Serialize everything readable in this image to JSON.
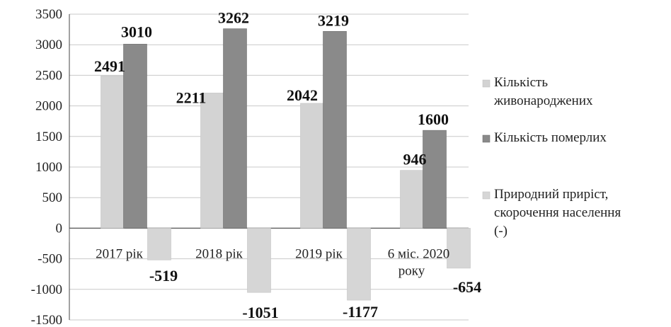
{
  "chart_data": {
    "type": "bar",
    "categories": [
      "2017 рік",
      "2018 рік",
      "2019 рік",
      "6 міс. 2020 року"
    ],
    "category_lines": [
      [
        "2017 рік"
      ],
      [
        "2018 рік"
      ],
      [
        "2019 рік"
      ],
      [
        "6 міс. 2020",
        "року"
      ]
    ],
    "series": [
      {
        "name": "Кількість живонароджених",
        "legend_lines": [
          "Кількість",
          "живонароджених"
        ],
        "values": [
          2491,
          2211,
          2042,
          946
        ],
        "data_labels": [
          "2491",
          "2211",
          "2042",
          "946"
        ],
        "color": "#d3d3d3"
      },
      {
        "name": "Кількість померлих",
        "legend_lines": [
          "Кількість померлих"
        ],
        "values": [
          3010,
          3262,
          3219,
          1600
        ],
        "data_labels": [
          "3010",
          "3262",
          "3219",
          "1600"
        ],
        "color": "#8a8a8a"
      },
      {
        "name": "Природний приріст, скорочення населення (-)",
        "legend_lines": [
          "Природний приріст,",
          "скорочення населення",
          "(-)"
        ],
        "values": [
          -519,
          -1051,
          -1177,
          -654
        ],
        "data_labels": [
          "-519",
          "-1051",
          "-1177",
          "-654"
        ],
        "color": "#d6d6d6"
      }
    ],
    "ylim": [
      -1500,
      3500
    ],
    "yticks": [
      "3500",
      "3000",
      "2500",
      "2000",
      "1500",
      "1000",
      "500",
      "0",
      "-500",
      "-1000",
      "-1500"
    ],
    "ytick_values": [
      3500,
      3000,
      2500,
      2000,
      1500,
      1000,
      500,
      0,
      -500,
      -1000,
      -1500
    ],
    "title": "",
    "xlabel": "",
    "ylabel": "",
    "grid": true,
    "legend_position": "right"
  }
}
